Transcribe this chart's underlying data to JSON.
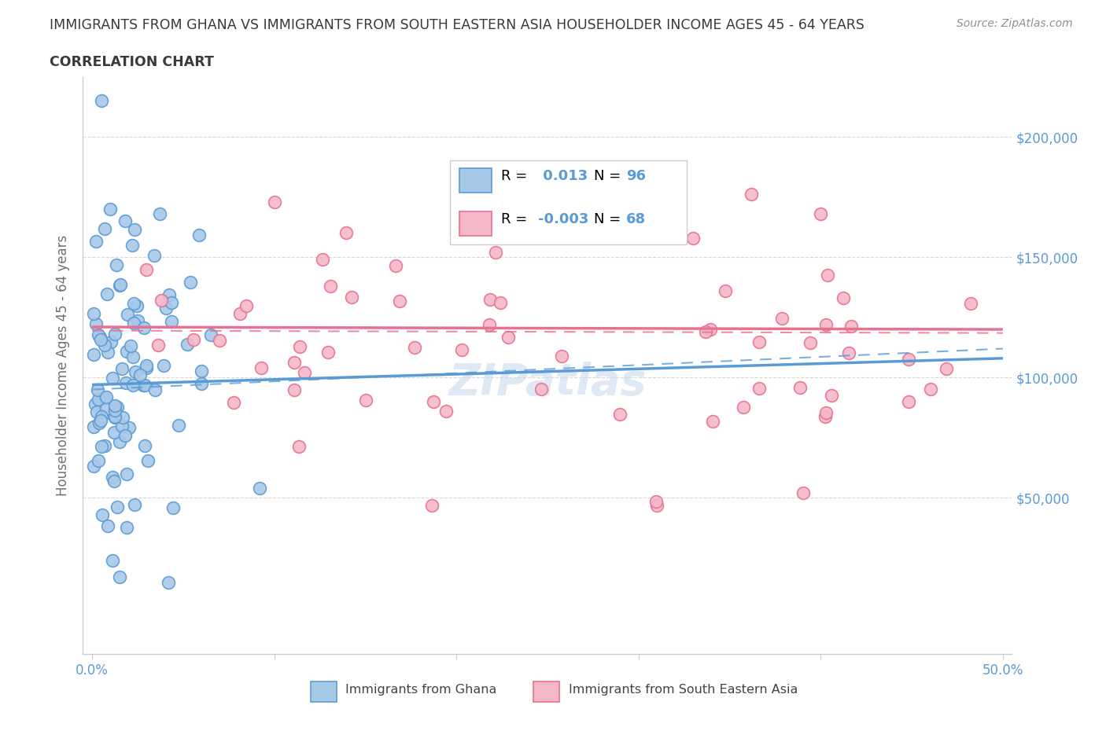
{
  "title_line1": "IMMIGRANTS FROM GHANA VS IMMIGRANTS FROM SOUTH EASTERN ASIA HOUSEHOLDER INCOME AGES 45 - 64 YEARS",
  "title_line2": "CORRELATION CHART",
  "source_text": "Source: ZipAtlas.com",
  "ylabel": "Householder Income Ages 45 - 64 years",
  "xlim": [
    -0.005,
    0.505
  ],
  "ylim": [
    -15000,
    225000
  ],
  "xticks": [
    0.0,
    0.1,
    0.2,
    0.3,
    0.4,
    0.5
  ],
  "xtick_labels_show": [
    "0.0%",
    "",
    "",
    "",
    "",
    "50.0%"
  ],
  "ytick_vals": [
    50000,
    100000,
    150000,
    200000
  ],
  "ytick_labels_right": [
    "$50,000",
    "$100,000",
    "$150,000",
    "$200,000"
  ],
  "ghana_color_fill": "#a8c8e8",
  "ghana_color_edge": "#5b9bd5",
  "sea_color_fill": "#f4b8c8",
  "sea_color_edge": "#e87090",
  "ghana_trend_color": "#5b9bd5",
  "sea_trend_color": "#e87090",
  "ghana_N": 96,
  "sea_N": 68,
  "watermark": "ZIPatlas",
  "title_color": "#3a3a3a",
  "axis_label_color": "#5b9bd5",
  "ylabel_color": "#707070",
  "source_color": "#909090",
  "legend_text_color": "#000000",
  "legend_val_color": "#5b9bd5",
  "background_color": "#ffffff",
  "grid_color": "#d8d8d8"
}
